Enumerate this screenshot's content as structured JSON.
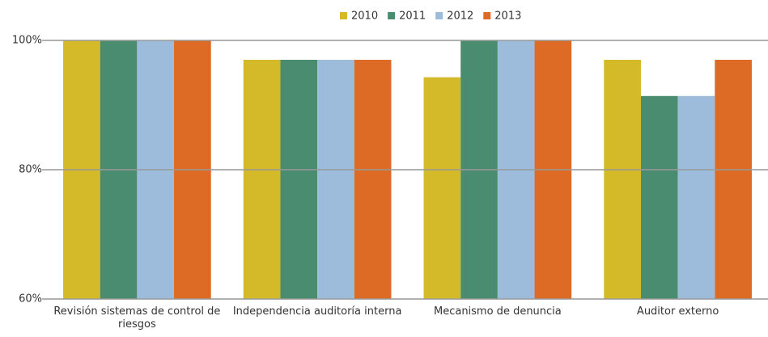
{
  "chart_data": {
    "type": "bar",
    "categories": [
      "Revisión sistemas de control de riesgos",
      "Independencia auditoría interna",
      "Mecanismo de denuncia",
      "Auditor externo"
    ],
    "series": [
      {
        "name": "2010",
        "color": "#d4b928",
        "values": [
          100,
          97,
          94.3,
          97
        ]
      },
      {
        "name": "2011",
        "color": "#4a8c6f",
        "values": [
          100,
          97,
          100,
          91.4
        ]
      },
      {
        "name": "2012",
        "color": "#9dbbdb",
        "values": [
          100,
          97,
          100,
          91.4
        ]
      },
      {
        "name": "2013",
        "color": "#dd6b25",
        "values": [
          100,
          97,
          100,
          97
        ]
      }
    ],
    "ylim": [
      60,
      100
    ],
    "yticks": [
      {
        "value": 60,
        "label": "60%"
      },
      {
        "value": 80,
        "label": "80%"
      },
      {
        "value": 100,
        "label": "100%"
      }
    ],
    "grid": true,
    "legend": "top"
  }
}
